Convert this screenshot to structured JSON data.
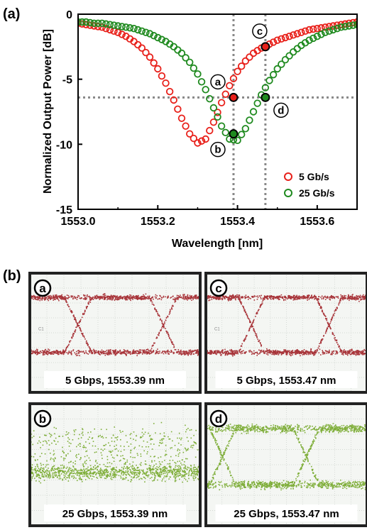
{
  "panel_labels": {
    "a": "(a)",
    "b": "(b)"
  },
  "chart_data": {
    "type": "scatter",
    "xlabel": "Wavelength [nm]",
    "ylabel": "Normalized Output Power [dB]",
    "xlim": [
      1553.0,
      1553.7
    ],
    "ylim": [
      -15,
      0
    ],
    "xticks": [
      "1553.0",
      "1553.2",
      "1553.4",
      "1553.6"
    ],
    "xtick_values": [
      1553.0,
      1553.2,
      1553.4,
      1553.6
    ],
    "yticks": [
      "0",
      "-5",
      "-10",
      "-15"
    ],
    "ytick_values": [
      0,
      -5,
      -10,
      -15
    ],
    "legend_position": "lower-right",
    "reference_lines": {
      "x": [
        1553.39,
        1553.47
      ],
      "y": -6.4
    },
    "series": [
      {
        "name": "5 Gb/s",
        "color": "#e8201a",
        "x": [
          1553.0,
          1553.02,
          1553.04,
          1553.06,
          1553.08,
          1553.1,
          1553.12,
          1553.14,
          1553.16,
          1553.18,
          1553.2,
          1553.22,
          1553.24,
          1553.26,
          1553.28,
          1553.3,
          1553.32,
          1553.34,
          1553.36,
          1553.38,
          1553.4,
          1553.42,
          1553.44,
          1553.46,
          1553.48,
          1553.5,
          1553.52,
          1553.54,
          1553.56,
          1553.58,
          1553.6,
          1553.62,
          1553.64,
          1553.66,
          1553.68,
          1553.7
        ],
        "y": [
          -0.7,
          -0.8,
          -0.9,
          -1.0,
          -1.2,
          -1.4,
          -1.7,
          -2.1,
          -2.6,
          -3.3,
          -4.2,
          -5.3,
          -6.6,
          -8.0,
          -9.2,
          -9.9,
          -9.6,
          -8.3,
          -6.8,
          -5.5,
          -4.4,
          -3.6,
          -3.0,
          -2.6,
          -2.3,
          -2.0,
          -1.8,
          -1.6,
          -1.4,
          -1.2,
          -1.1,
          -1.0,
          -0.9,
          -0.8,
          -0.7,
          -0.6
        ]
      },
      {
        "name": "25 Gb/s",
        "color": "#1f8a1f",
        "x": [
          1553.0,
          1553.02,
          1553.04,
          1553.06,
          1553.08,
          1553.1,
          1553.12,
          1553.14,
          1553.16,
          1553.18,
          1553.2,
          1553.22,
          1553.24,
          1553.26,
          1553.28,
          1553.3,
          1553.32,
          1553.34,
          1553.36,
          1553.38,
          1553.4,
          1553.42,
          1553.44,
          1553.46,
          1553.48,
          1553.5,
          1553.52,
          1553.54,
          1553.56,
          1553.58,
          1553.6,
          1553.62,
          1553.64,
          1553.66,
          1553.68,
          1553.7
        ],
        "y": [
          -0.6,
          -0.6,
          -0.7,
          -0.7,
          -0.8,
          -0.9,
          -1.0,
          -1.1,
          -1.3,
          -1.5,
          -1.8,
          -2.1,
          -2.5,
          -3.0,
          -3.7,
          -4.6,
          -5.8,
          -7.2,
          -8.6,
          -9.6,
          -9.7,
          -8.8,
          -7.5,
          -6.2,
          -5.1,
          -4.2,
          -3.5,
          -2.9,
          -2.4,
          -2.0,
          -1.7,
          -1.4,
          -1.2,
          -1.0,
          -0.9,
          -0.8
        ]
      }
    ],
    "highlighted_points": [
      {
        "label": "a",
        "series": "5 Gb/s",
        "x": 1553.39,
        "y": -6.4
      },
      {
        "label": "b",
        "series": "25 Gb/s",
        "x": 1553.39,
        "y": -9.2
      },
      {
        "label": "c",
        "series": "5 Gb/s",
        "x": 1553.47,
        "y": -2.5
      },
      {
        "label": "d",
        "series": "25 Gb/s",
        "x": 1553.47,
        "y": -6.4
      }
    ]
  },
  "eye_diagrams": [
    {
      "label": "a",
      "caption": "5 Gbps, 1553.39 nm",
      "color": "#a8353a",
      "grid_text": "C1"
    },
    {
      "label": "c",
      "caption": "5 Gbps, 1553.47 nm",
      "color": "#a8353a",
      "grid_text": "C1"
    },
    {
      "label": "b",
      "caption": "25 Gbps, 1553.39 nm",
      "color": "#7fae3a",
      "grid_text": ""
    },
    {
      "label": "d",
      "caption": "25 Gbps, 1553.47 nm",
      "color": "#7fae3a",
      "grid_text": ""
    }
  ]
}
